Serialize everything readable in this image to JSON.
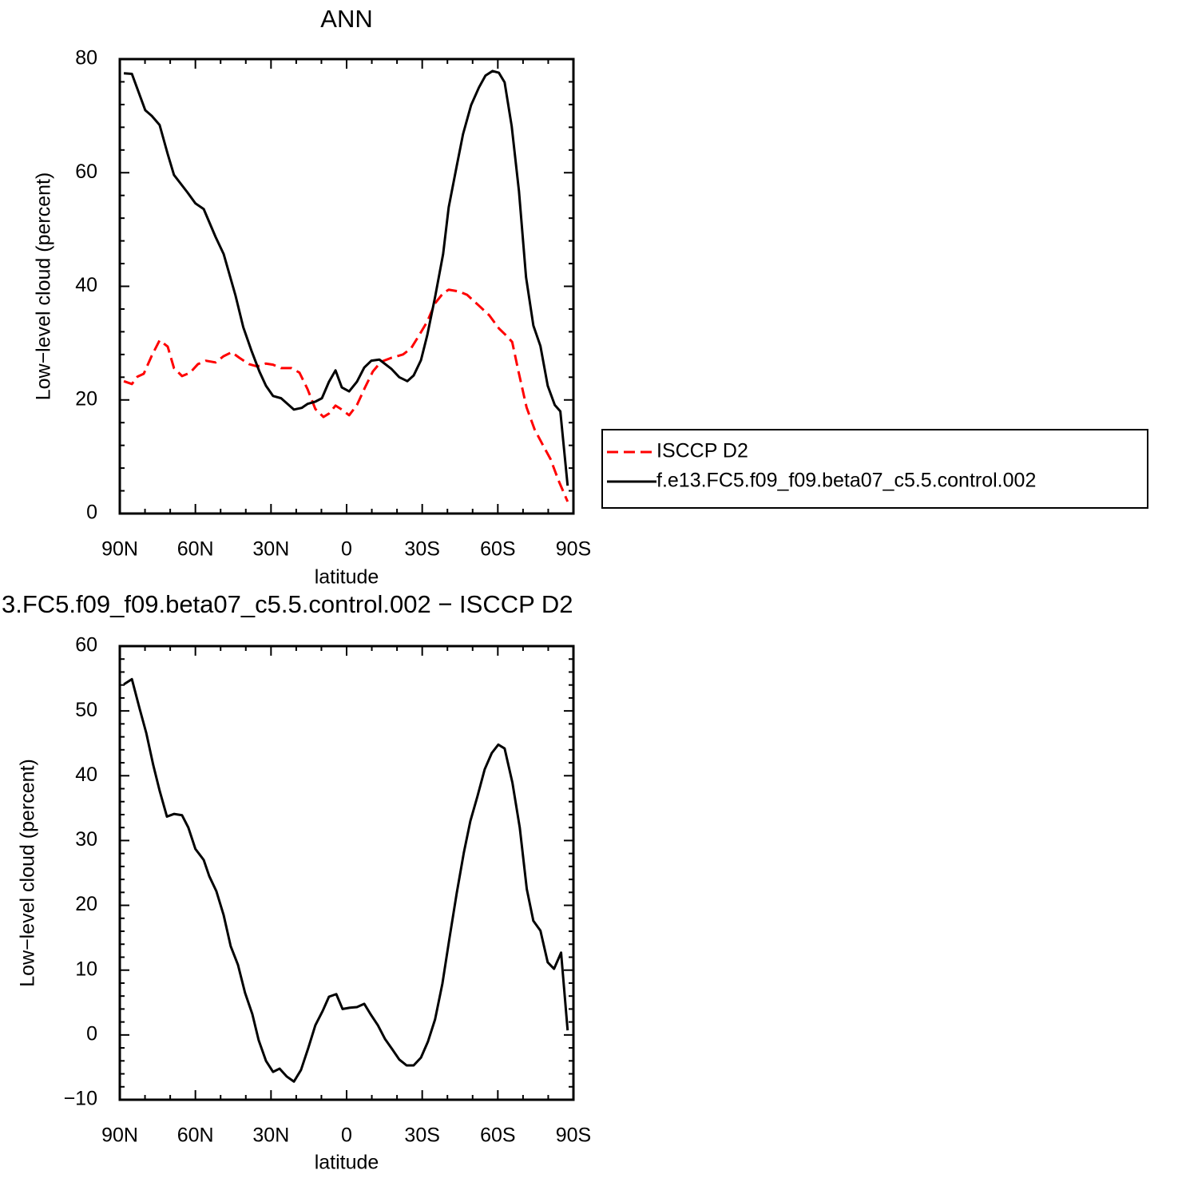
{
  "chart_data": [
    {
      "type": "line",
      "title": "ANN",
      "xlabel": "latitude",
      "ylabel": "Low−level cloud (percent)",
      "xlim": [
        90,
        -90
      ],
      "xticks": [
        {
          "value": 90,
          "label": "90N"
        },
        {
          "value": 60,
          "label": "60N"
        },
        {
          "value": 30,
          "label": "30N"
        },
        0,
        {
          "value": -30,
          "label": "30S"
        },
        {
          "value": -60,
          "label": "60S"
        },
        {
          "value": -90,
          "label": "90S"
        }
      ],
      "ylim": [
        0,
        80
      ],
      "yticks": [
        0,
        20,
        40,
        60,
        80
      ],
      "legend": "right",
      "series": [
        {
          "name": "ISCCP D2",
          "color": "#ff0000",
          "linestyle": "dashed",
          "x": [
            88.4,
            85.2,
            83,
            80.5,
            77.3,
            74.2,
            71,
            68.5,
            65.3,
            62.1,
            59,
            55.8,
            52,
            48.8,
            45.6,
            42.5,
            38.7,
            35.5,
            32,
            29.2,
            26,
            21.9,
            18.7,
            15.5,
            12.4,
            9.2,
            7,
            4.4,
            1.9,
            -1,
            -4.1,
            -7.3,
            -10.4,
            -13.6,
            -17.7,
            -22.4,
            -25.6,
            -28.8,
            -32,
            -35.1,
            -38.3,
            -40.5,
            -44.6,
            -47.8,
            -52.5,
            -56.6,
            -60.4,
            -63.2,
            -65.7,
            -68.2,
            -71.4,
            -74.6,
            -77.7,
            -80.9,
            -84.1,
            -87.7
          ],
          "values": [
            23.3,
            22.8,
            24.1,
            24.6,
            27.8,
            30.5,
            29.4,
            25.6,
            24.2,
            24.8,
            26.3,
            26.9,
            26.6,
            27.7,
            28.4,
            27.4,
            26.3,
            25.9,
            26.4,
            26.2,
            25.6,
            25.6,
            24.8,
            21.9,
            18.4,
            17.0,
            17.6,
            19.0,
            18.3,
            17.3,
            19.1,
            22.2,
            25.0,
            26.7,
            27.4,
            28.0,
            29.1,
            31.4,
            33.8,
            37.0,
            38.8,
            39.4,
            39.1,
            38.5,
            36.6,
            34.9,
            32.6,
            31.4,
            30.2,
            25.0,
            18.7,
            14.8,
            12.2,
            9.6,
            5.8,
            2.1
          ]
        },
        {
          "name": "f.e13.FC5.f09_f09.beta07_c5.5.control.002",
          "color": "#000000",
          "linestyle": "solid",
          "x": [
            88.4,
            85.2,
            79.9,
            77.3,
            74.2,
            71,
            68.5,
            63.1,
            60,
            56.7,
            52,
            48.8,
            44.1,
            41,
            37.7,
            34.6,
            32,
            29.2,
            26,
            20.9,
            17.8,
            15.5,
            12.4,
            9.8,
            7,
            4.4,
            1.9,
            -1,
            -4.1,
            -7,
            -9.8,
            -13,
            -17.7,
            -20.9,
            -24.1,
            -26.6,
            -29.5,
            -32,
            -35.1,
            -38.3,
            -40.5,
            -43.7,
            -46.2,
            -49.4,
            -52.5,
            -55.1,
            -57.9,
            -60.4,
            -62.7,
            -65.5,
            -68.4,
            -71.2,
            -74.1,
            -76.9,
            -79.8,
            -82.6,
            -84.8,
            -87.7
          ],
          "values": [
            77.5,
            77.4,
            71.0,
            70.0,
            68.4,
            63.3,
            59.6,
            56.5,
            54.6,
            53.6,
            48.7,
            45.7,
            38.4,
            32.8,
            28.6,
            25.0,
            22.5,
            20.7,
            20.3,
            18.3,
            18.6,
            19.3,
            19.7,
            20.3,
            23.2,
            25.2,
            22.2,
            21.5,
            23.2,
            25.7,
            26.9,
            27.1,
            25.5,
            24.0,
            23.3,
            24.3,
            27.0,
            31.4,
            38.1,
            45.7,
            53.9,
            61.2,
            66.8,
            71.9,
            75.0,
            77.1,
            77.9,
            77.6,
            75.9,
            68.2,
            56.7,
            41.6,
            33.1,
            29.5,
            22.5,
            19.1,
            18.0,
            4.9
          ]
        }
      ]
    },
    {
      "type": "line",
      "title": "3.FC5.f09_f09.beta07_c5.5.control.002 − ISCCP D2",
      "xlabel": "latitude",
      "ylabel": "Low−level cloud (percent)",
      "xlim": [
        90,
        -90
      ],
      "xticks": [
        {
          "value": 90,
          "label": "90N"
        },
        {
          "value": 60,
          "label": "60N"
        },
        {
          "value": 30,
          "label": "30N"
        },
        0,
        {
          "value": -30,
          "label": "30S"
        },
        {
          "value": -60,
          "label": "60S"
        },
        {
          "value": -90,
          "label": "90S"
        }
      ],
      "ylim": [
        -10,
        60
      ],
      "yticks": [
        {
          "value": -10,
          "label": "−10"
        },
        0,
        10,
        20,
        30,
        40,
        50,
        60
      ],
      "color": "#000000",
      "x": [
        88.4,
        85.2,
        82.1,
        79.5,
        76.7,
        74.2,
        71.3,
        68.5,
        65.3,
        62.8,
        60,
        56.7,
        54.5,
        51.7,
        48.8,
        46,
        43.1,
        40.3,
        37.4,
        34.9,
        32,
        29.2,
        26.6,
        23.8,
        20.9,
        18.1,
        15.2,
        12.4,
        9.5,
        7,
        4.1,
        1.6,
        -1.3,
        -4.1,
        -7,
        -9.5,
        -12.4,
        -15.2,
        -18.1,
        -20.9,
        -23.8,
        -26.6,
        -29.5,
        -32.3,
        -35.1,
        -38,
        -40.8,
        -43.7,
        -46.5,
        -49.1,
        -51.9,
        -54.8,
        -57.6,
        -60.2,
        -62.7,
        -65.8,
        -68.7,
        -71.5,
        -74.1,
        -76.9,
        -79.8,
        -82.3,
        -85.1,
        -87.7
      ],
      "values": [
        54.1,
        54.9,
        50.3,
        46.6,
        41.6,
        37.7,
        33.7,
        34.1,
        33.9,
        32.0,
        28.7,
        27.0,
        24.5,
        22.2,
        18.5,
        13.7,
        10.8,
        6.5,
        3.2,
        -0.8,
        -4.0,
        -5.7,
        -5.2,
        -6.4,
        -7.2,
        -5.4,
        -2.0,
        1.5,
        3.7,
        5.9,
        6.3,
        4.0,
        4.2,
        4.3,
        4.8,
        3.2,
        1.5,
        -0.6,
        -2.2,
        -3.8,
        -4.7,
        -4.7,
        -3.5,
        -1.0,
        2.4,
        7.9,
        14.9,
        21.9,
        28.1,
        33.0,
        36.8,
        41.0,
        43.5,
        44.8,
        44.2,
        38.9,
        32.0,
        22.5,
        17.6,
        16.1,
        11.2,
        10.2,
        12.7,
        0.7
      ]
    }
  ]
}
